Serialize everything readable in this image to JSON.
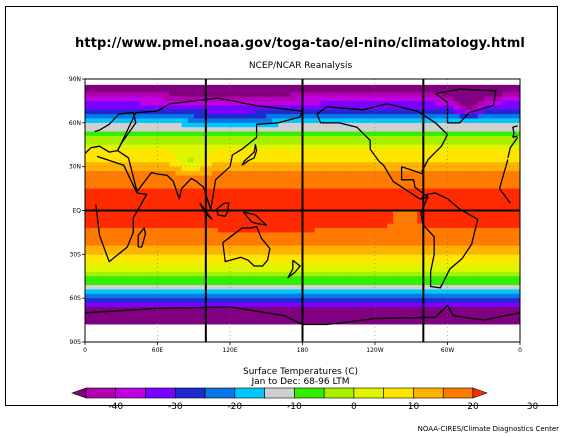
{
  "header": {
    "url": "http://www.pmel.noaa.gov/toga-tao/el-nino/climatology.html",
    "dataset": "NCEP/NCAR Reanalysis"
  },
  "caption": {
    "variable": "Surface Temperatures (C)",
    "period": "Jan to Dec: 68-96 LTM"
  },
  "credit": "NOAA-CIRES/Climate Diagnostics Center",
  "map": {
    "lat_labels": [
      "90N",
      "60N",
      "30N",
      "EQ",
      "30S",
      "60S",
      "90S"
    ],
    "lon_labels": [
      "0",
      "60E",
      "120E",
      "180",
      "120W",
      "60W",
      "0"
    ],
    "grid_emphasis": [
      "equator",
      "100E",
      "180",
      "80W"
    ]
  },
  "colorbar": {
    "tick_labels": [
      "-40",
      "-30",
      "-20",
      "-10",
      "0",
      "10",
      "20",
      "30"
    ],
    "colors": [
      "#800080",
      "#b000b0",
      "#c000e0",
      "#7a00ff",
      "#1e2ccf",
      "#0a77e6",
      "#00c8ff",
      "#d0d0d0",
      "#33ee00",
      "#a8f000",
      "#e0f500",
      "#ffe600",
      "#ffb300",
      "#ff7a00",
      "#ff2a00"
    ]
  }
}
